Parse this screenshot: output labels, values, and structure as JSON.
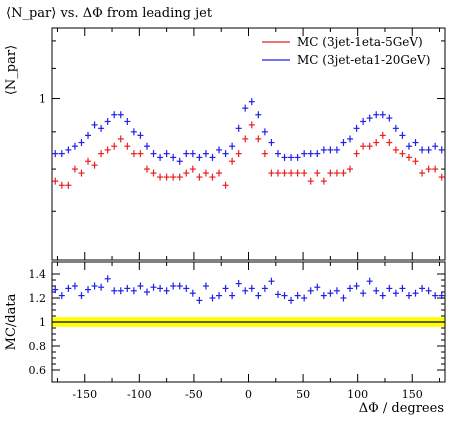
{
  "chart_data": [
    {
      "type": "scatter",
      "title": "⟨N_par⟩ vs. ΔΦ from leading jet",
      "ylabel": "⟨N_par⟩",
      "xlabel": "",
      "xlim": [
        -180,
        180
      ],
      "ylim": [
        0.6,
        1.25
      ],
      "yscale": "log",
      "y_ticks": [
        {
          "value": 1,
          "label": "1"
        }
      ],
      "x_ticks": [
        -150,
        -100,
        -50,
        0,
        50,
        100,
        150
      ],
      "legend": "top-right",
      "series": [
        {
          "name": "MC (3jet-1eta-5GeV)",
          "color": "#e8201e",
          "x": [
            -177,
            -171,
            -165,
            -159,
            -153,
            -147,
            -141,
            -135,
            -129,
            -123,
            -117,
            -111,
            -105,
            -99,
            -93,
            -87,
            -81,
            -75,
            -69,
            -63,
            -57,
            -51,
            -45,
            -39,
            -33,
            -27,
            -21,
            -15,
            -9,
            -3,
            3,
            9,
            15,
            21,
            27,
            33,
            39,
            45,
            51,
            57,
            63,
            69,
            75,
            81,
            87,
            93,
            99,
            105,
            111,
            117,
            123,
            129,
            135,
            141,
            147,
            153,
            159,
            165,
            171,
            177
          ],
          "y": [
            0.77,
            0.76,
            0.76,
            0.8,
            0.79,
            0.82,
            0.81,
            0.84,
            0.85,
            0.86,
            0.88,
            0.86,
            0.84,
            0.84,
            0.8,
            0.79,
            0.78,
            0.78,
            0.78,
            0.78,
            0.79,
            0.8,
            0.78,
            0.79,
            0.78,
            0.79,
            0.76,
            0.82,
            0.84,
            0.88,
            0.92,
            0.88,
            0.84,
            0.79,
            0.79,
            0.79,
            0.79,
            0.79,
            0.79,
            0.77,
            0.79,
            0.77,
            0.79,
            0.79,
            0.79,
            0.8,
            0.84,
            0.86,
            0.86,
            0.87,
            0.89,
            0.87,
            0.85,
            0.84,
            0.83,
            0.82,
            0.79,
            0.8,
            0.8,
            0.78
          ]
        },
        {
          "name": "MC (3jet-eta1-20GeV)",
          "color": "#2020e8",
          "x": [
            -177,
            -171,
            -165,
            -159,
            -153,
            -147,
            -141,
            -135,
            -129,
            -123,
            -117,
            -111,
            -105,
            -99,
            -93,
            -87,
            -81,
            -75,
            -69,
            -63,
            -57,
            -51,
            -45,
            -39,
            -33,
            -27,
            -21,
            -15,
            -9,
            -3,
            3,
            9,
            15,
            21,
            27,
            33,
            39,
            45,
            51,
            57,
            63,
            69,
            75,
            81,
            87,
            93,
            99,
            105,
            111,
            117,
            123,
            129,
            135,
            141,
            147,
            153,
            159,
            165,
            171,
            177
          ],
          "y": [
            0.84,
            0.84,
            0.85,
            0.86,
            0.87,
            0.89,
            0.92,
            0.91,
            0.93,
            0.95,
            0.95,
            0.93,
            0.9,
            0.89,
            0.86,
            0.84,
            0.83,
            0.84,
            0.83,
            0.82,
            0.84,
            0.84,
            0.83,
            0.84,
            0.83,
            0.85,
            0.84,
            0.86,
            0.91,
            0.97,
            0.99,
            0.95,
            0.9,
            0.87,
            0.84,
            0.83,
            0.83,
            0.83,
            0.84,
            0.84,
            0.84,
            0.85,
            0.85,
            0.85,
            0.87,
            0.88,
            0.91,
            0.93,
            0.94,
            0.95,
            0.95,
            0.94,
            0.91,
            0.89,
            0.86,
            0.87,
            0.85,
            0.85,
            0.86,
            0.85
          ]
        }
      ]
    },
    {
      "type": "scatter",
      "title": "",
      "ylabel": "MC/data",
      "xlabel": "ΔΦ / degrees",
      "xlim": [
        -180,
        180
      ],
      "ylim": [
        0.5,
        1.5
      ],
      "y_ticks": [
        {
          "value": 0.6,
          "label": "0.6"
        },
        {
          "value": 0.8,
          "label": "0.8"
        },
        {
          "value": 1.0,
          "label": "1"
        },
        {
          "value": 1.2,
          "label": "1.2"
        },
        {
          "value": 1.4,
          "label": "1.4"
        }
      ],
      "x_ticks": [
        -150,
        -100,
        -50,
        0,
        50,
        100,
        150
      ],
      "reference_line": 1.0,
      "uncertainty_band": [
        0.96,
        1.04
      ],
      "band_color": "#ffff00",
      "series": [
        {
          "name": "MC (3jet-eta1-20GeV)",
          "color": "#2020e8",
          "x": [
            -177,
            -171,
            -165,
            -159,
            -153,
            -147,
            -141,
            -135,
            -129,
            -123,
            -117,
            -111,
            -105,
            -99,
            -93,
            -87,
            -81,
            -75,
            -69,
            -63,
            -57,
            -51,
            -45,
            -39,
            -33,
            -27,
            -21,
            -15,
            -9,
            -3,
            3,
            9,
            15,
            21,
            27,
            33,
            39,
            45,
            51,
            57,
            63,
            69,
            75,
            81,
            87,
            93,
            99,
            105,
            111,
            117,
            123,
            129,
            135,
            141,
            147,
            153,
            159,
            165,
            171,
            177
          ],
          "y": [
            1.27,
            1.22,
            1.28,
            1.3,
            1.22,
            1.27,
            1.3,
            1.29,
            1.36,
            1.26,
            1.26,
            1.28,
            1.26,
            1.3,
            1.25,
            1.29,
            1.28,
            1.26,
            1.3,
            1.3,
            1.28,
            1.24,
            1.18,
            1.3,
            1.2,
            1.22,
            1.28,
            1.22,
            1.32,
            1.26,
            1.28,
            1.22,
            1.28,
            1.34,
            1.23,
            1.22,
            1.18,
            1.22,
            1.2,
            1.26,
            1.29,
            1.22,
            1.24,
            1.26,
            1.2,
            1.28,
            1.3,
            1.24,
            1.34,
            1.26,
            1.22,
            1.28,
            1.24,
            1.28,
            1.22,
            1.24,
            1.28,
            1.26,
            1.22,
            1.22
          ]
        }
      ]
    }
  ]
}
